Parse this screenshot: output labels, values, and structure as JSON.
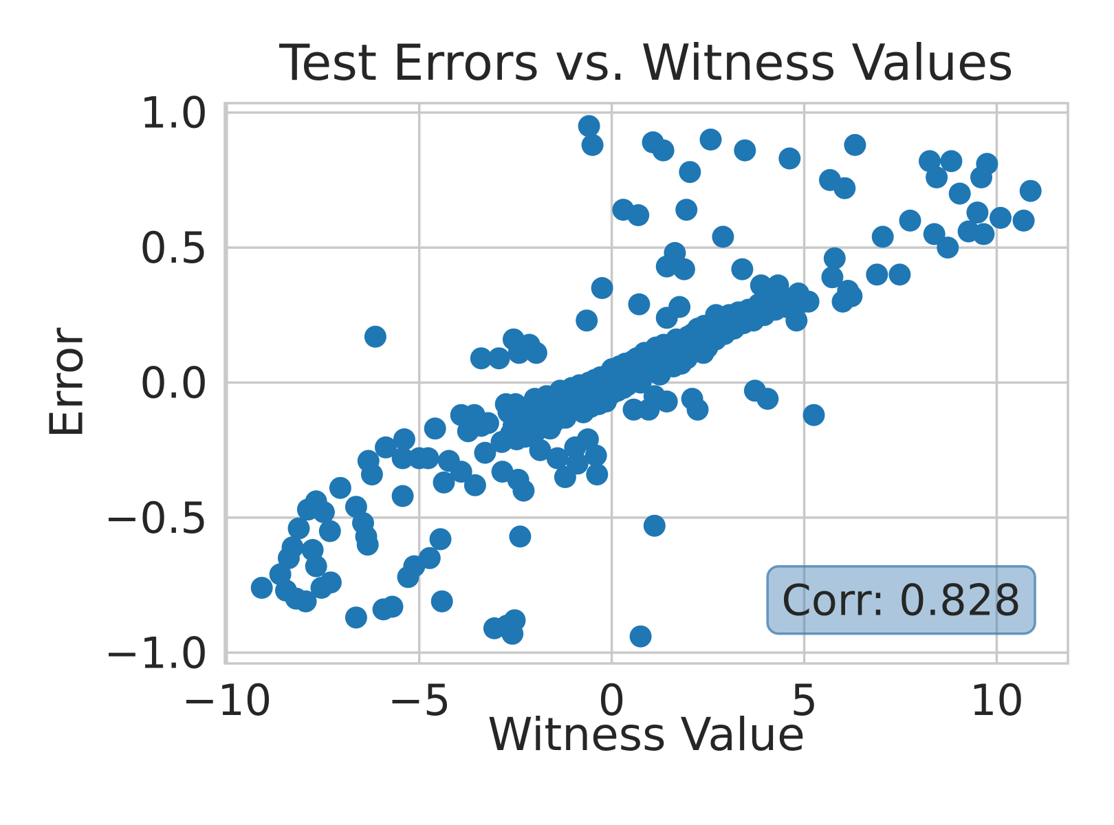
{
  "figure": {
    "background": "#ffffff"
  },
  "chart_data": {
    "type": "scatter",
    "title": "Test Errors vs. Witness Values",
    "xlabel": "Witness Value",
    "ylabel": "Error",
    "xlim": [
      -10.05,
      11.85
    ],
    "ylim": [
      -1.04,
      1.035
    ],
    "xticks": [
      -10,
      -5,
      0,
      5,
      10
    ],
    "xtick_labels": [
      "−10",
      "−5",
      "0",
      "5",
      "10"
    ],
    "yticks": [
      1.0,
      0.5,
      0.0,
      -0.5,
      -1.0
    ],
    "ytick_labels": [
      "1.0",
      "0.5",
      "0.0",
      "−0.5",
      "−1.0"
    ],
    "grid": true,
    "grid_color": "#c9c9c9",
    "text_color": "#262626",
    "marker": {
      "color": "#1f77b4",
      "radius_px": 16
    },
    "annotation": {
      "label": "Corr: 0.828",
      "x": 7.52,
      "y": -0.805,
      "box_fill": "rgba(70,130,180,0.45)",
      "box_edge": "rgba(70,130,180,0.8)"
    },
    "points": [
      [
        -0.59,
        0.95
      ],
      [
        -0.5,
        0.88
      ],
      [
        1.07,
        0.89
      ],
      [
        1.34,
        0.86
      ],
      [
        2.57,
        0.9
      ],
      [
        3.46,
        0.86
      ],
      [
        2.03,
        0.78
      ],
      [
        0.3,
        0.64
      ],
      [
        0.69,
        0.62
      ],
      [
        1.94,
        0.64
      ],
      [
        2.89,
        0.54
      ],
      [
        1.64,
        0.48
      ],
      [
        1.43,
        0.43
      ],
      [
        1.88,
        0.42
      ],
      [
        3.39,
        0.42
      ],
      [
        3.88,
        0.36
      ],
      [
        4.32,
        0.36
      ],
      [
        -0.25,
        0.35
      ],
      [
        -0.65,
        0.23
      ],
      [
        0.71,
        0.29
      ],
      [
        1.76,
        0.28
      ],
      [
        1.43,
        0.24
      ],
      [
        2.71,
        0.25
      ],
      [
        2.98,
        0.24
      ],
      [
        4.62,
        0.83
      ],
      [
        6.32,
        0.88
      ],
      [
        8.26,
        0.82
      ],
      [
        8.82,
        0.82
      ],
      [
        9.75,
        0.81
      ],
      [
        9.6,
        0.76
      ],
      [
        8.44,
        0.76
      ],
      [
        5.67,
        0.75
      ],
      [
        6.05,
        0.72
      ],
      [
        9.04,
        0.7
      ],
      [
        10.88,
        0.71
      ],
      [
        9.5,
        0.63
      ],
      [
        10.1,
        0.61
      ],
      [
        10.7,
        0.6
      ],
      [
        7.75,
        0.6
      ],
      [
        7.04,
        0.54
      ],
      [
        8.38,
        0.55
      ],
      [
        8.73,
        0.5
      ],
      [
        9.27,
        0.56
      ],
      [
        9.66,
        0.55
      ],
      [
        5.79,
        0.46
      ],
      [
        5.73,
        0.39
      ],
      [
        6.89,
        0.4
      ],
      [
        7.48,
        0.4
      ],
      [
        6.14,
        0.34
      ],
      [
        4.75,
        0.28
      ],
      [
        5.11,
        0.3
      ],
      [
        4.8,
        0.23
      ],
      [
        6.0,
        0.3
      ],
      [
        6.23,
        0.32
      ],
      [
        -6.14,
        0.17
      ],
      [
        -3.39,
        0.09
      ],
      [
        -2.93,
        0.09
      ],
      [
        -4.59,
        -0.17
      ],
      [
        -3.91,
        -0.12
      ],
      [
        -3.57,
        -0.12
      ],
      [
        -3.73,
        -0.18
      ],
      [
        -3.39,
        -0.16
      ],
      [
        -3.21,
        -0.15
      ],
      [
        -2.75,
        -0.08
      ],
      [
        -5.87,
        -0.24
      ],
      [
        -5.39,
        -0.21
      ],
      [
        -5.43,
        -0.28
      ],
      [
        -5.0,
        -0.28
      ],
      [
        -4.77,
        -0.28
      ],
      [
        -6.32,
        -0.29
      ],
      [
        -6.23,
        -0.34
      ],
      [
        -4.23,
        -0.29
      ],
      [
        -3.91,
        -0.33
      ],
      [
        -3.29,
        -0.26
      ],
      [
        -2.86,
        -0.22
      ],
      [
        -7.05,
        -0.39
      ],
      [
        -7.68,
        -0.44
      ],
      [
        -7.48,
        -0.48
      ],
      [
        -7.89,
        -0.47
      ],
      [
        -6.64,
        -0.46
      ],
      [
        -5.43,
        -0.42
      ],
      [
        -6.46,
        -0.52
      ],
      [
        -6.38,
        -0.57
      ],
      [
        -6.34,
        -0.6
      ],
      [
        -8.13,
        -0.54
      ],
      [
        -7.32,
        -0.55
      ],
      [
        -8.29,
        -0.61
      ],
      [
        -7.77,
        -0.62
      ],
      [
        -8.39,
        -0.65
      ],
      [
        -7.68,
        -0.68
      ],
      [
        -8.61,
        -0.71
      ],
      [
        -9.09,
        -0.76
      ],
      [
        -8.46,
        -0.77
      ],
      [
        -8.2,
        -0.8
      ],
      [
        -7.95,
        -0.81
      ],
      [
        -7.54,
        -0.76
      ],
      [
        -7.3,
        -0.74
      ],
      [
        -6.64,
        -0.87
      ],
      [
        -5.93,
        -0.84
      ],
      [
        -5.7,
        -0.83
      ],
      [
        -5.13,
        -0.68
      ],
      [
        -5.29,
        -0.72
      ],
      [
        -4.45,
        -0.58
      ],
      [
        -4.41,
        -0.81
      ],
      [
        -4.36,
        -0.37
      ],
      [
        -3.55,
        -0.38
      ],
      [
        -4.73,
        -0.65
      ],
      [
        -3.05,
        -0.91
      ],
      [
        -2.72,
        -0.9
      ],
      [
        -2.52,
        -0.88
      ],
      [
        -2.58,
        -0.93
      ],
      [
        -2.43,
        -0.36
      ],
      [
        -2.29,
        -0.4
      ],
      [
        -2.38,
        -0.57
      ],
      [
        1.11,
        -0.53
      ],
      [
        0.75,
        -0.94
      ],
      [
        5.25,
        -0.12
      ],
      [
        1.11,
        -0.05
      ],
      [
        1.43,
        -0.07
      ],
      [
        2.09,
        -0.06
      ],
      [
        2.23,
        -0.1
      ],
      [
        0.57,
        -0.1
      ],
      [
        0.96,
        -0.1
      ],
      [
        -0.62,
        -0.21
      ],
      [
        -0.95,
        -0.24
      ],
      [
        -0.41,
        -0.27
      ],
      [
        -0.89,
        -0.3
      ],
      [
        -0.38,
        -0.34
      ],
      [
        3.72,
        -0.03
      ],
      [
        -2.16,
        -0.19
      ],
      [
        -1.21,
        -0.35
      ],
      [
        -1.86,
        -0.25
      ],
      [
        -1.41,
        -0.28
      ],
      [
        -2.84,
        -0.33
      ],
      [
        4.05,
        -0.06
      ],
      [
        -2.55,
        0.16
      ],
      [
        -2.41,
        0.11
      ],
      [
        -2.14,
        0.14
      ],
      [
        -1.96,
        0.11
      ],
      [
        -2.68,
        -0.11
      ],
      [
        -2.62,
        -0.19
      ],
      [
        -2.55,
        -0.16
      ],
      [
        -2.5,
        -0.08
      ],
      [
        -2.47,
        -0.21
      ],
      [
        -2.42,
        -0.14
      ],
      [
        -2.38,
        -0.1
      ],
      [
        -2.33,
        -0.17
      ],
      [
        -2.28,
        -0.12
      ],
      [
        -2.24,
        -0.2
      ],
      [
        -2.18,
        -0.15
      ],
      [
        -2.12,
        -0.09
      ],
      [
        -2.08,
        -0.16
      ],
      [
        -2.02,
        -0.12
      ],
      [
        -1.97,
        -0.18
      ],
      [
        -1.93,
        -0.1
      ],
      [
        -1.88,
        -0.14
      ],
      [
        -1.83,
        -0.07
      ],
      [
        -1.78,
        -0.16
      ],
      [
        -1.73,
        -0.11
      ],
      [
        -1.69,
        -0.05
      ],
      [
        -1.64,
        -0.13
      ],
      [
        -1.58,
        -0.09
      ],
      [
        -1.53,
        -0.15
      ],
      [
        -1.48,
        -0.12
      ],
      [
        -1.44,
        -0.06
      ],
      [
        -1.39,
        -0.1
      ],
      [
        -1.34,
        -0.03
      ],
      [
        -1.29,
        -0.13
      ],
      [
        -1.24,
        -0.08
      ],
      [
        -1.19,
        -0.05
      ],
      [
        -1.14,
        -0.11
      ],
      [
        -1.09,
        -0.07
      ],
      [
        -1.04,
        -0.02
      ],
      [
        -0.98,
        -0.09
      ],
      [
        -0.94,
        -0.04
      ],
      [
        -0.89,
        -0.08
      ],
      [
        -0.84,
        -0.01
      ],
      [
        -0.79,
        -0.06
      ],
      [
        -0.74,
        -0.11
      ],
      [
        -0.69,
        -0.03
      ],
      [
        -0.64,
        -0.07
      ],
      [
        -0.59,
        0.0
      ],
      [
        -0.54,
        -0.05
      ],
      [
        -0.48,
        -0.06
      ],
      [
        -0.44,
        0.01
      ],
      [
        -0.39,
        -0.04
      ],
      [
        -0.34,
        -0.08
      ],
      [
        -0.29,
        0.02
      ],
      [
        -0.24,
        -0.03
      ],
      [
        -0.19,
        -0.01
      ],
      [
        -0.14,
        -0.05
      ],
      [
        -0.09,
        0.03
      ],
      [
        -0.04,
        -0.02
      ],
      [
        0.01,
        0.05
      ],
      [
        0.05,
        -0.01
      ],
      [
        0.1,
        0.03
      ],
      [
        0.15,
        -0.03
      ],
      [
        0.2,
        0.06
      ],
      [
        0.25,
        0.01
      ],
      [
        0.3,
        -0.02
      ],
      [
        0.35,
        0.07
      ],
      [
        0.4,
        0.02
      ],
      [
        0.45,
        0.05
      ],
      [
        0.5,
        0.01
      ],
      [
        0.55,
        0.08
      ],
      [
        0.6,
        0.03
      ],
      [
        0.65,
        0.09
      ],
      [
        0.7,
        0.04
      ],
      [
        0.75,
        0.0
      ],
      [
        0.8,
        0.07
      ],
      [
        0.85,
        0.11
      ],
      [
        0.9,
        0.05
      ],
      [
        0.95,
        0.09
      ],
      [
        1.0,
        0.04
      ],
      [
        1.05,
        0.11
      ],
      [
        1.1,
        0.06
      ],
      [
        1.15,
        0.13
      ],
      [
        1.2,
        0.08
      ],
      [
        1.25,
        0.03
      ],
      [
        1.3,
        0.1
      ],
      [
        1.35,
        0.14
      ],
      [
        1.4,
        0.07
      ],
      [
        1.45,
        0.12
      ],
      [
        1.5,
        0.08
      ],
      [
        1.56,
        0.14
      ],
      [
        1.62,
        0.1
      ],
      [
        1.68,
        0.16
      ],
      [
        1.74,
        0.11
      ],
      [
        1.8,
        0.07
      ],
      [
        1.86,
        0.15
      ],
      [
        1.92,
        0.12
      ],
      [
        1.98,
        0.17
      ],
      [
        2.04,
        0.12
      ],
      [
        2.1,
        0.18
      ],
      [
        2.17,
        0.13
      ],
      [
        2.24,
        0.2
      ],
      [
        2.31,
        0.15
      ],
      [
        2.38,
        0.11
      ],
      [
        2.45,
        0.19
      ],
      [
        2.52,
        0.16
      ],
      [
        2.6,
        0.21
      ],
      [
        2.7,
        0.16
      ],
      [
        2.81,
        0.23
      ],
      [
        2.93,
        0.18
      ],
      [
        3.05,
        0.25
      ],
      [
        3.17,
        0.2
      ],
      [
        3.29,
        0.26
      ],
      [
        3.42,
        0.22
      ],
      [
        3.55,
        0.27
      ],
      [
        3.68,
        0.23
      ],
      [
        3.82,
        0.29
      ],
      [
        3.96,
        0.25
      ],
      [
        4.1,
        0.31
      ],
      [
        4.25,
        0.27
      ],
      [
        4.4,
        0.32
      ],
      [
        4.55,
        0.28
      ],
      [
        4.7,
        0.3
      ],
      [
        4.85,
        0.33
      ],
      [
        5.0,
        0.3
      ],
      [
        -2.35,
        -0.13
      ],
      [
        -2.15,
        -0.18
      ],
      [
        -1.9,
        -0.13
      ],
      [
        -1.75,
        -0.08
      ],
      [
        -1.55,
        -0.12
      ],
      [
        -1.35,
        -0.09
      ],
      [
        -1.15,
        -0.04
      ],
      [
        -0.95,
        -0.07
      ],
      [
        -0.75,
        -0.02
      ],
      [
        -0.55,
        -0.09
      ],
      [
        -0.35,
        0.0
      ],
      [
        -0.15,
        -0.07
      ],
      [
        0.08,
        0.02
      ],
      [
        0.28,
        0.04
      ],
      [
        0.48,
        0.07
      ],
      [
        0.68,
        0.01
      ],
      [
        0.88,
        0.08
      ],
      [
        1.08,
        0.09
      ],
      [
        1.28,
        0.05
      ],
      [
        1.48,
        0.1
      ],
      [
        1.7,
        0.13
      ],
      [
        1.95,
        0.09
      ],
      [
        2.2,
        0.16
      ],
      [
        2.48,
        0.13
      ],
      [
        -2.0,
        -0.06
      ],
      [
        -1.6,
        -0.17
      ],
      [
        -1.2,
        -0.13
      ],
      [
        -0.8,
        -0.1
      ],
      [
        -0.4,
        -0.06
      ],
      [
        0.0,
        -0.04
      ],
      [
        0.4,
        -0.01
      ],
      [
        0.8,
        0.03
      ],
      [
        1.2,
        0.11
      ],
      [
        1.6,
        0.06
      ],
      [
        2.0,
        0.14
      ],
      [
        2.4,
        0.21
      ]
    ]
  }
}
